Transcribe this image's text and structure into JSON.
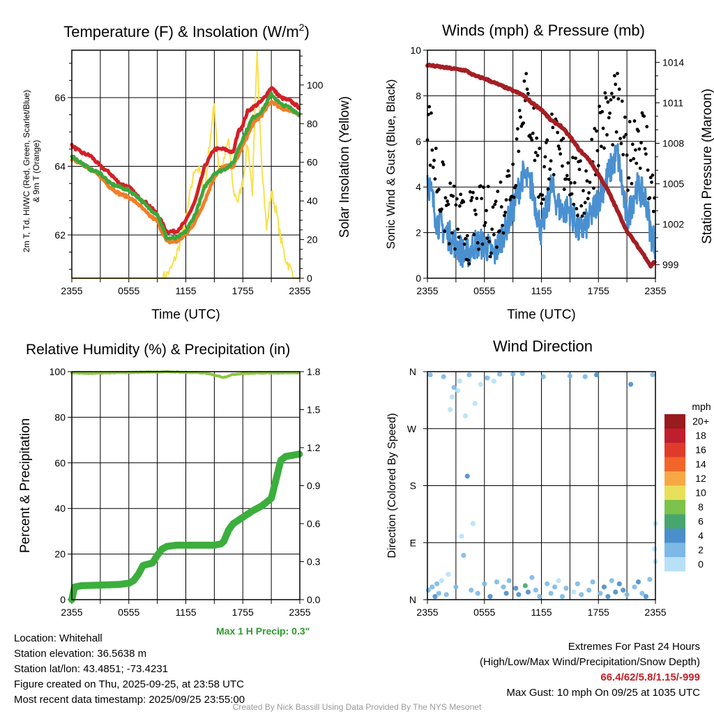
{
  "chart_data": [
    {
      "type": "line",
      "title": "Temperature (F) & Insolation (W/m2)",
      "title_main": "Temperature (F) & Insolation (W/m",
      "title_sup": "2",
      "title_end": ")",
      "xlabel": "Time (UTC)",
      "ylabel_line1": "2m T, Td, HI/WC (Red, Green, Scarlet/Blue)",
      "ylabel_line2": "& 9m T (Orange)",
      "ylabel_right": "Solar Insolation (Yellow)",
      "xticks": [
        "2355",
        "0555",
        "1155",
        "1755",
        "2355"
      ],
      "yticks_left": [
        "62",
        "64",
        "66"
      ],
      "yticks_right": [
        "0",
        "20",
        "40",
        "60",
        "80",
        "100"
      ],
      "ylim": [
        60.74,
        67.38
      ],
      "ylim_right": [
        0,
        118
      ],
      "x_hours": [
        0,
        1,
        2,
        3,
        4,
        5,
        6,
        7,
        8,
        9,
        10,
        11,
        12,
        13,
        14,
        15,
        16,
        17,
        17.5,
        18,
        18.5,
        19,
        20,
        21,
        22,
        23,
        24
      ],
      "series": [
        {
          "name": "2m T",
          "color": "#d42027",
          "values": [
            64.6,
            64.4,
            64.3,
            64.0,
            63.8,
            63.5,
            63.4,
            63.1,
            62.9,
            62.6,
            62.1,
            62.1,
            62.4,
            63.0,
            64.0,
            64.5,
            64.5,
            64.4,
            65.0,
            65.2,
            65.6,
            65.7,
            65.9,
            66.3,
            66.0,
            65.9,
            65.7
          ]
        },
        {
          "name": "9m T",
          "color": "#f47d28",
          "values": [
            64.2,
            64.1,
            63.9,
            63.7,
            63.4,
            63.2,
            63.1,
            62.9,
            62.6,
            62.4,
            61.8,
            61.8,
            62.0,
            62.4,
            63.0,
            63.7,
            64.0,
            64.0,
            64.3,
            64.6,
            64.9,
            65.2,
            65.5,
            65.9,
            65.7,
            65.6,
            65.5
          ]
        },
        {
          "name": "Td",
          "color": "#3ca83c",
          "values": [
            64.3,
            64.1,
            63.9,
            63.8,
            63.5,
            63.4,
            63.3,
            63.1,
            62.8,
            62.6,
            61.9,
            61.9,
            62.1,
            62.6,
            63.4,
            63.8,
            63.9,
            64.1,
            64.5,
            64.8,
            65.1,
            65.4,
            65.6,
            66.1,
            65.8,
            65.7,
            65.5
          ]
        }
      ],
      "solar": {
        "name": "Solar Insolation",
        "color": "#f9e04b",
        "x_hours": [
          0,
          9.5,
          10,
          10.5,
          11,
          11.5,
          12,
          12.5,
          13,
          13.5,
          14,
          14.5,
          15,
          15.5,
          16,
          16.5,
          17,
          17.5,
          18,
          18.5,
          19,
          19.5,
          20,
          20.5,
          21,
          21.5,
          22,
          22.5,
          23,
          23.5,
          24
        ],
        "values": [
          0,
          0,
          2,
          5,
          12,
          20,
          30,
          45,
          58,
          55,
          45,
          70,
          90,
          55,
          60,
          72,
          45,
          40,
          50,
          70,
          45,
          115,
          60,
          25,
          45,
          35,
          20,
          10,
          5,
          0,
          0
        ]
      }
    },
    {
      "type": "line",
      "title": "Winds (mph) & Pressure (mb)",
      "xlabel": "Time (UTC)",
      "ylabel": "Sonic Wind & Gust (Blue, Black)",
      "ylabel_right": "Station Pressure (Maroon)",
      "xticks": [
        "2355",
        "0555",
        "1155",
        "1755",
        "2355"
      ],
      "yticks_left": [
        "0",
        "2",
        "4",
        "6",
        "8",
        "10"
      ],
      "yticks_right": [
        "999",
        "1002",
        "1005",
        "1008",
        "1011",
        "1014"
      ],
      "ylim": [
        0,
        10
      ],
      "ylim_right": [
        998.0,
        1014.9
      ],
      "x_hours": [
        0,
        1,
        2,
        3,
        4,
        5,
        6,
        7,
        8,
        9,
        10,
        11,
        12,
        13,
        14,
        15,
        16,
        17,
        18,
        19,
        20,
        21,
        22,
        23,
        23.5,
        24
      ],
      "wind": {
        "name": "Sonic Wind",
        "color": "#4a90d0",
        "values": [
          4.5,
          2.5,
          2.0,
          1.5,
          1.0,
          1.5,
          1.5,
          1.0,
          2.0,
          3.0,
          4.5,
          4.0,
          2.0,
          4.0,
          3.0,
          3.0,
          2.0,
          2.5,
          3.5,
          4.5,
          5.5,
          2.5,
          4.0,
          3.5,
          2.0,
          1.5
        ]
      },
      "gust": {
        "name": "Gust",
        "color": "#000000",
        "values": [
          7.0,
          4.5,
          3.0,
          2.5,
          2.0,
          2.5,
          2.5,
          2.5,
          3.5,
          4.5,
          8.0,
          7.0,
          4.0,
          6.0,
          5.0,
          5.0,
          3.5,
          4.5,
          6.5,
          7.0,
          7.5,
          5.0,
          6.5,
          6.0,
          4.0,
          3.0
        ]
      },
      "pressure": {
        "name": "Station Pressure",
        "color": "#a31f24",
        "values": [
          1013.8,
          1013.7,
          1013.6,
          1013.5,
          1013.4,
          1013.0,
          1012.8,
          1012.5,
          1012.2,
          1011.9,
          1011.6,
          1011.0,
          1010.5,
          1009.7,
          1009.3,
          1008.5,
          1007.5,
          1006.8,
          1005.7,
          1004.5,
          1003.0,
          1001.5,
          1000.5,
          999.5,
          998.9,
          999.3
        ]
      }
    },
    {
      "type": "line",
      "title": "Relative Humidity (%) & Precipitation (in)",
      "ylabel": "Percent & Precipitation",
      "xticks": [
        "2355",
        "0555",
        "1155",
        "1755",
        "2355"
      ],
      "yticks_left": [
        "0",
        "20",
        "40",
        "60",
        "80",
        "100"
      ],
      "yticks_right": [
        "0.0",
        "0.3",
        "0.6",
        "0.9",
        "1.2",
        "1.5",
        "1.8"
      ],
      "ylim": [
        0,
        100
      ],
      "ylim_right": [
        0,
        1.8
      ],
      "rh": {
        "name": "Relative Humidity",
        "color": "#8cc63f",
        "x_hours": [
          0,
          2,
          4,
          6,
          8,
          10,
          12,
          14,
          15,
          16,
          17,
          18,
          20,
          22,
          24
        ],
        "values": [
          99.5,
          99.2,
          99.5,
          99.6,
          99.8,
          99.9,
          99.7,
          99.4,
          98.5,
          97.5,
          98.8,
          99.2,
          99.4,
          99.5,
          99.5
        ]
      },
      "precip": {
        "name": "Precipitation",
        "color": "#3cae3c",
        "x_hours": [
          0,
          0.3,
          1,
          5,
          6,
          6.5,
          7,
          7.5,
          8.5,
          9,
          9.5,
          10,
          11,
          15,
          15.7,
          16,
          16.5,
          17,
          18,
          19,
          20,
          21,
          21.5,
          22,
          22.5,
          24
        ],
        "values": [
          0,
          0.1,
          0.11,
          0.12,
          0.13,
          0.15,
          0.2,
          0.27,
          0.29,
          0.35,
          0.4,
          0.42,
          0.43,
          0.43,
          0.44,
          0.46,
          0.55,
          0.6,
          0.65,
          0.7,
          0.74,
          0.8,
          0.95,
          1.1,
          1.13,
          1.15
        ]
      },
      "note": "Max 1 H Precip: 0.3\""
    },
    {
      "type": "scatter",
      "title": "Wind Direction",
      "ylabel": "Direction (Colored By Speed)",
      "xticks": [
        "2355",
        "0555",
        "1155",
        "1755",
        "2355"
      ],
      "yticks": [
        "N",
        "E",
        "S",
        "W",
        "N"
      ],
      "ylim": [
        0,
        360
      ],
      "legend_title": "mph",
      "legend": [
        {
          "label": "20+",
          "color": "#981b1e"
        },
        {
          "label": "18",
          "color": "#bf1e2e"
        },
        {
          "label": "16",
          "color": "#e03a2b"
        },
        {
          "label": "14",
          "color": "#f26529"
        },
        {
          "label": "12",
          "color": "#f8a745"
        },
        {
          "label": "10",
          "color": "#e8e05a"
        },
        {
          "label": "8",
          "color": "#7dc24a"
        },
        {
          "label": "6",
          "color": "#47a66e"
        },
        {
          "label": "4",
          "color": "#4b8fca"
        },
        {
          "label": "2",
          "color": "#7db9e6"
        },
        {
          "label": "0",
          "color": "#b7e1f7"
        }
      ],
      "legend_placement": "right",
      "points": [
        [
          0.1,
          15,
          3
        ],
        [
          0.3,
          355,
          2
        ],
        [
          0.5,
          20,
          3
        ],
        [
          0.8,
          5,
          4
        ],
        [
          1.0,
          25,
          2
        ],
        [
          1.2,
          10,
          3
        ],
        [
          1.5,
          30,
          1
        ],
        [
          1.7,
          352,
          3
        ],
        [
          2.0,
          8,
          2
        ],
        [
          2.2,
          40,
          1
        ],
        [
          2.4,
          300,
          1
        ],
        [
          2.6,
          320,
          1
        ],
        [
          2.8,
          335,
          2
        ],
        [
          3.0,
          20,
          3
        ],
        [
          3.2,
          330,
          1
        ],
        [
          3.4,
          345,
          1
        ],
        [
          3.6,
          100,
          1
        ],
        [
          3.8,
          70,
          2
        ],
        [
          4.0,
          290,
          1
        ],
        [
          4.2,
          195,
          4
        ],
        [
          4.4,
          355,
          2
        ],
        [
          4.6,
          15,
          3
        ],
        [
          4.8,
          120,
          1
        ],
        [
          5.0,
          310,
          1
        ],
        [
          5.3,
          10,
          2
        ],
        [
          5.6,
          340,
          1
        ],
        [
          6.0,
          25,
          3
        ],
        [
          6.3,
          350,
          2
        ],
        [
          6.6,
          5,
          4
        ],
        [
          7.0,
          345,
          1
        ],
        [
          7.3,
          28,
          2
        ],
        [
          7.6,
          356,
          3
        ],
        [
          8.0,
          20,
          3
        ],
        [
          8.3,
          10,
          4
        ],
        [
          8.6,
          30,
          3
        ],
        [
          9.0,
          356,
          3
        ],
        [
          9.3,
          18,
          5
        ],
        [
          9.6,
          8,
          4
        ],
        [
          10.0,
          357,
          3
        ],
        [
          10.3,
          22,
          6
        ],
        [
          10.6,
          12,
          4
        ],
        [
          11.0,
          35,
          2
        ],
        [
          11.4,
          15,
          3
        ],
        [
          11.8,
          5,
          2
        ],
        [
          12.2,
          352,
          3
        ],
        [
          12.6,
          25,
          3
        ],
        [
          13.0,
          10,
          2
        ],
        [
          13.4,
          20,
          3
        ],
        [
          13.8,
          30,
          1
        ],
        [
          14.2,
          5,
          2
        ],
        [
          14.6,
          18,
          3
        ],
        [
          15.0,
          353,
          2
        ],
        [
          15.4,
          12,
          1
        ],
        [
          15.8,
          25,
          3
        ],
        [
          16.2,
          8,
          2
        ],
        [
          16.6,
          352,
          3
        ],
        [
          17.0,
          15,
          2
        ],
        [
          17.4,
          28,
          3
        ],
        [
          17.8,
          355,
          4
        ],
        [
          18.2,
          10,
          3
        ],
        [
          18.6,
          20,
          4
        ],
        [
          19.0,
          5,
          4
        ],
        [
          19.4,
          30,
          3
        ],
        [
          19.8,
          12,
          4
        ],
        [
          20.2,
          25,
          4
        ],
        [
          20.6,
          15,
          4
        ],
        [
          21.0,
          8,
          3
        ],
        [
          21.4,
          340,
          4
        ],
        [
          21.8,
          20,
          3
        ],
        [
          22.2,
          28,
          4
        ],
        [
          22.6,
          10,
          3
        ],
        [
          23.0,
          5,
          4
        ],
        [
          23.4,
          32,
          2
        ],
        [
          23.7,
          355,
          3
        ],
        [
          23.9,
          80,
          1
        ],
        [
          24.0,
          120,
          1
        ],
        [
          24.0,
          60,
          1
        ]
      ]
    }
  ],
  "info": {
    "location": "Location: Whitehall",
    "elevation": "Station elevation: 36.5638 m",
    "latlon": "Station lat/lon: 43.4851; -73.4231",
    "created": "Figure created on Thu, 2025-09-25, at 23:58 UTC",
    "recent": "Most recent data timestamp: 2025/09/25 23:55:00"
  },
  "extremes": {
    "title": "Extremes For Past 24 Hours",
    "subtitle": "(High/Low/Max Wind/Precipitation/Snow Depth)",
    "values": "66.4/62/5.8/1.15/-999",
    "max_gust": "Max Gust: 10 mph On 09/25 at 1035 UTC"
  },
  "credit": "Created By Nick Bassill Using Data Provided By The NYS Mesonet"
}
